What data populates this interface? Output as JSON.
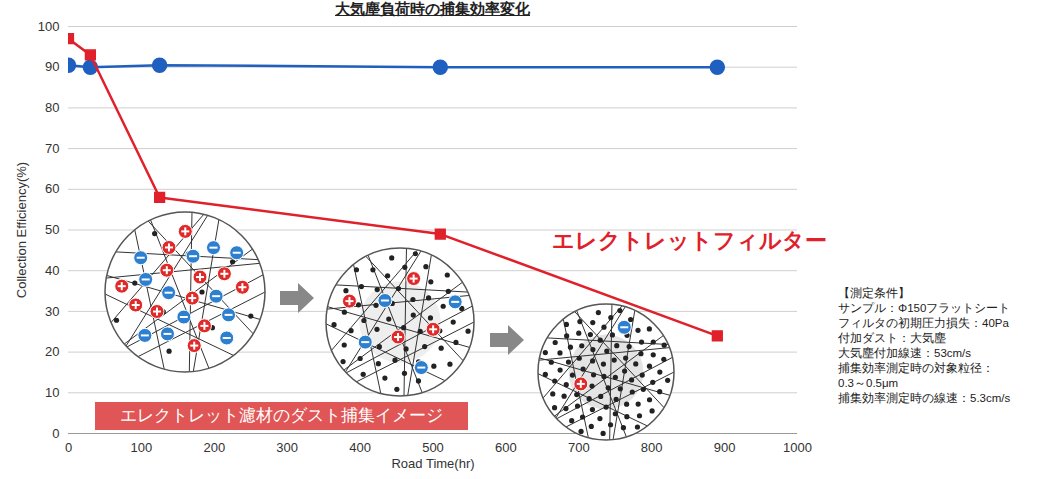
{
  "chart_data": {
    "type": "line",
    "title": "大気塵負荷時の捕集効率変化",
    "x_label": "Road Time(hr)",
    "y_label": "Collection Efficiency(%)",
    "x": [
      0,
      30,
      125,
      510,
      890
    ],
    "series": [
      {
        "color": "#1f5fbf",
        "marker": "circle",
        "values": [
          90.5,
          90,
          90.5,
          90,
          90
        ]
      },
      {
        "name": "エレクトレットフィルター",
        "color": "#e0202a",
        "marker": "square",
        "values": [
          97,
          93,
          58,
          49,
          24
        ]
      }
    ],
    "xlim": [
      0,
      1000
    ],
    "xticks": [
      0,
      100,
      200,
      300,
      400,
      500,
      600,
      700,
      800,
      900,
      1000
    ],
    "ylim": [
      0,
      100
    ],
    "yticks": [
      0,
      10,
      20,
      30,
      40,
      50,
      60,
      70,
      80,
      90,
      100
    ],
    "grid": true,
    "annotations": [
      "エレクトレット濾材のダスト捕集イメージ",
      "【測定条件】",
      "サンプル：Φ150フラットシート",
      "フィルタの初期圧力損失：40Pa",
      "付加ダスト：大気塵",
      "大気塵付加線速：53cm/s",
      "捕集効率測定時の対象粒径：",
      "0.3～0.5μm",
      "捕集効率測定時の線速：5.3cm/s"
    ]
  }
}
